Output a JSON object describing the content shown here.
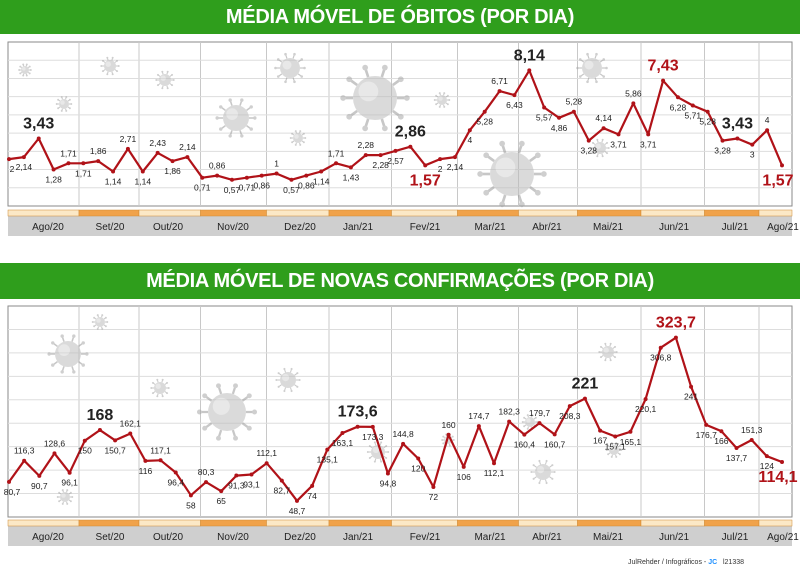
{
  "colors": {
    "banner": "#2f9e1c",
    "line": "#b01218",
    "highlight": "#b01218",
    "label": "#222222",
    "month_band_even": "#f0a24a",
    "month_band_odd": "#fbe8c6",
    "axis_band": "#cfcfcf"
  },
  "credits": {
    "author": "JulRehder",
    "dept": "Infográficos -",
    "brand": "JC",
    "code": "l21338"
  },
  "chart_data": [
    {
      "type": "line",
      "title": "MÉDIA MÓVEL DE ÓBITOS (POR DIA)",
      "months": [
        "Ago/20",
        "Set/20",
        "Out/20",
        "Nov/20",
        "Dez/20",
        "Jan/21",
        "Fev/21",
        "Mar/21",
        "Abr/21",
        "Mai/21",
        "Jun/21",
        "Jul/21",
        "Ago/21"
      ],
      "ylim": [
        0,
        9
      ],
      "grid": true,
      "series": [
        {
          "labels": [
            "2",
            "2,14",
            "3,43",
            "1,28",
            "1,71",
            "1,71",
            "1,86",
            "1,14",
            "2,71",
            "1,14",
            "2,43",
            "1,86",
            "2,14",
            "0,71",
            "0,86",
            "0,57",
            "0,71",
            "0,86",
            "1",
            "0,57",
            "0,86",
            "1,14",
            "1,71",
            "1,43",
            "2,28",
            "2,28",
            "2,57",
            "2,86",
            "1,57",
            "2",
            "2,14",
            "4",
            "5,28",
            "6,71",
            "6,43",
            "8,14",
            "5,57",
            "4,86",
            "5,28",
            "3,28",
            "4,14",
            "3,71",
            "5,86",
            "3,71",
            "7,43",
            "6,28",
            "5,71",
            "5,28",
            "3,28",
            "3,43",
            "3",
            "4",
            "1,57"
          ],
          "values": [
            2,
            2.14,
            3.43,
            1.28,
            1.71,
            1.71,
            1.86,
            1.14,
            2.71,
            1.14,
            2.43,
            1.86,
            2.14,
            0.71,
            0.86,
            0.57,
            0.71,
            0.86,
            1,
            0.57,
            0.86,
            1.14,
            1.71,
            1.43,
            2.28,
            2.28,
            2.57,
            2.86,
            1.57,
            2,
            2.14,
            4,
            5.28,
            6.71,
            6.43,
            8.14,
            5.57,
            4.86,
            5.28,
            3.28,
            4.14,
            3.71,
            5.86,
            3.71,
            7.43,
            6.28,
            5.71,
            5.28,
            3.28,
            3.43,
            3,
            4,
            1.57
          ]
        }
      ],
      "highlights": [
        "3,43",
        "2,86",
        "8,14",
        "7,43",
        "1,57"
      ],
      "red_highlights": [
        "7,43",
        "1,57"
      ]
    },
    {
      "type": "line",
      "title": "MÉDIA MÓVEL DE NOVAS CONFIRMAÇÕES (POR DIA)",
      "months": [
        "Ago/20",
        "Set/20",
        "Out/20",
        "Nov/20",
        "Dez/20",
        "Jan/21",
        "Fev/21",
        "Mar/21",
        "Abr/21",
        "Mai/21",
        "Jun/21",
        "Jul/21",
        "Ago/21"
      ],
      "ylim": [
        40,
        340
      ],
      "grid": true,
      "series": [
        {
          "labels": [
            "80,7",
            "116,3",
            "90,7",
            "128,6",
            "96,1",
            "150",
            "168",
            "150,7",
            "162,1",
            "116",
            "117,1",
            "96,4",
            "58",
            "80,3",
            "65",
            "91,3",
            "93,1",
            "112,1",
            "82,7",
            "48,7",
            "74",
            "135,1",
            "163,1",
            "173,6",
            "173,3",
            "94,8",
            "144,8",
            "120",
            "72",
            "160",
            "106",
            "174,7",
            "112,1",
            "182,3",
            "160,4",
            "179,7",
            "160,7",
            "208,3",
            "221",
            "167",
            "157,1",
            "165,1",
            "220,1",
            "306,8",
            "323,7",
            "241",
            "176,7",
            "166",
            "137,7",
            "151,3",
            "124",
            "114,1"
          ],
          "values": [
            80.7,
            116.3,
            90.7,
            128.6,
            96.1,
            150,
            168,
            150.7,
            162.1,
            116,
            117.1,
            96.4,
            58,
            80.3,
            65,
            91.3,
            93.1,
            112.1,
            82.7,
            48.7,
            74,
            135.1,
            163.1,
            173.6,
            173.3,
            94.8,
            144.8,
            120,
            72,
            160,
            106,
            174.7,
            112.1,
            182.3,
            160.4,
            179.7,
            160.7,
            208.3,
            221,
            167,
            157.1,
            165.1,
            220.1,
            306.8,
            323.7,
            241,
            176.7,
            166,
            137.7,
            151.3,
            124,
            114.1
          ]
        }
      ],
      "highlights": [
        "168",
        "173,6",
        "221",
        "323,7",
        "114,1"
      ],
      "red_highlights": [
        "323,7",
        "114,1"
      ]
    }
  ]
}
